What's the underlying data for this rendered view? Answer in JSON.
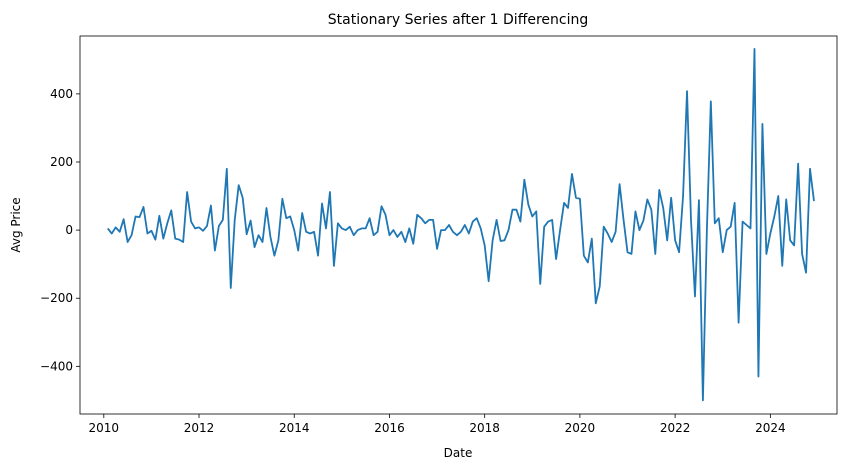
{
  "chart_data": {
    "type": "line",
    "title": "Stationary Series after 1 Differencing",
    "xlabel": "Date",
    "ylabel": "Avg Price",
    "x_start": "2010-02",
    "x_step": "monthly",
    "xlim": [
      2009.5,
      2025.4
    ],
    "ylim": [
      -540,
      570
    ],
    "x_ticks": [
      2010,
      2012,
      2014,
      2016,
      2018,
      2020,
      2022,
      2024
    ],
    "y_ticks": [
      -400,
      -200,
      0,
      200,
      400
    ],
    "x_tick_labels": [
      "2010",
      "2012",
      "2014",
      "2016",
      "2018",
      "2020",
      "2022",
      "2024"
    ],
    "y_tick_labels": [
      "−400",
      "−200",
      "0",
      "200",
      "400"
    ],
    "grid": false,
    "series": [
      {
        "color": "#1f77b4",
        "values": [
          5,
          -10,
          8,
          -5,
          32,
          -35,
          -15,
          40,
          38,
          68,
          -10,
          -2,
          -28,
          42,
          -25,
          20,
          58,
          -25,
          -28,
          -35,
          112,
          25,
          5,
          8,
          -2,
          12,
          72,
          -60,
          12,
          30,
          180,
          -170,
          30,
          132,
          95,
          -12,
          28,
          -50,
          -15,
          -35,
          65,
          -20,
          -75,
          -30,
          92,
          35,
          40,
          0,
          -60,
          50,
          -5,
          -10,
          -5,
          -75,
          78,
          5,
          112,
          -105,
          20,
          5,
          0,
          10,
          -15,
          0,
          5,
          5,
          35,
          -15,
          -5,
          70,
          45,
          -15,
          0,
          -20,
          -5,
          -35,
          5,
          -40,
          45,
          35,
          20,
          30,
          30,
          -55,
          0,
          0,
          15,
          -5,
          -15,
          -5,
          15,
          -10,
          25,
          35,
          5,
          -45,
          -150,
          -30,
          30,
          -32,
          -30,
          0,
          60,
          60,
          25,
          148,
          75,
          40,
          55,
          -158,
          10,
          25,
          30,
          -85,
          0,
          80,
          65,
          165,
          95,
          92,
          -75,
          -95,
          -25,
          -215,
          -165,
          10,
          -10,
          -35,
          -5,
          135,
          30,
          -65,
          -70,
          55,
          0,
          28,
          90,
          60,
          -70,
          118,
          65,
          -30,
          95,
          -30,
          -65,
          100,
          408,
          30,
          -195,
          88,
          -500,
          0,
          378,
          20,
          35,
          -65,
          0,
          10,
          80,
          -272,
          25,
          15,
          5,
          532,
          -430,
          312,
          -70,
          -10,
          40,
          100,
          -105,
          90,
          -30,
          -45,
          195,
          -70,
          -125,
          180,
          85
        ]
      }
    ]
  }
}
